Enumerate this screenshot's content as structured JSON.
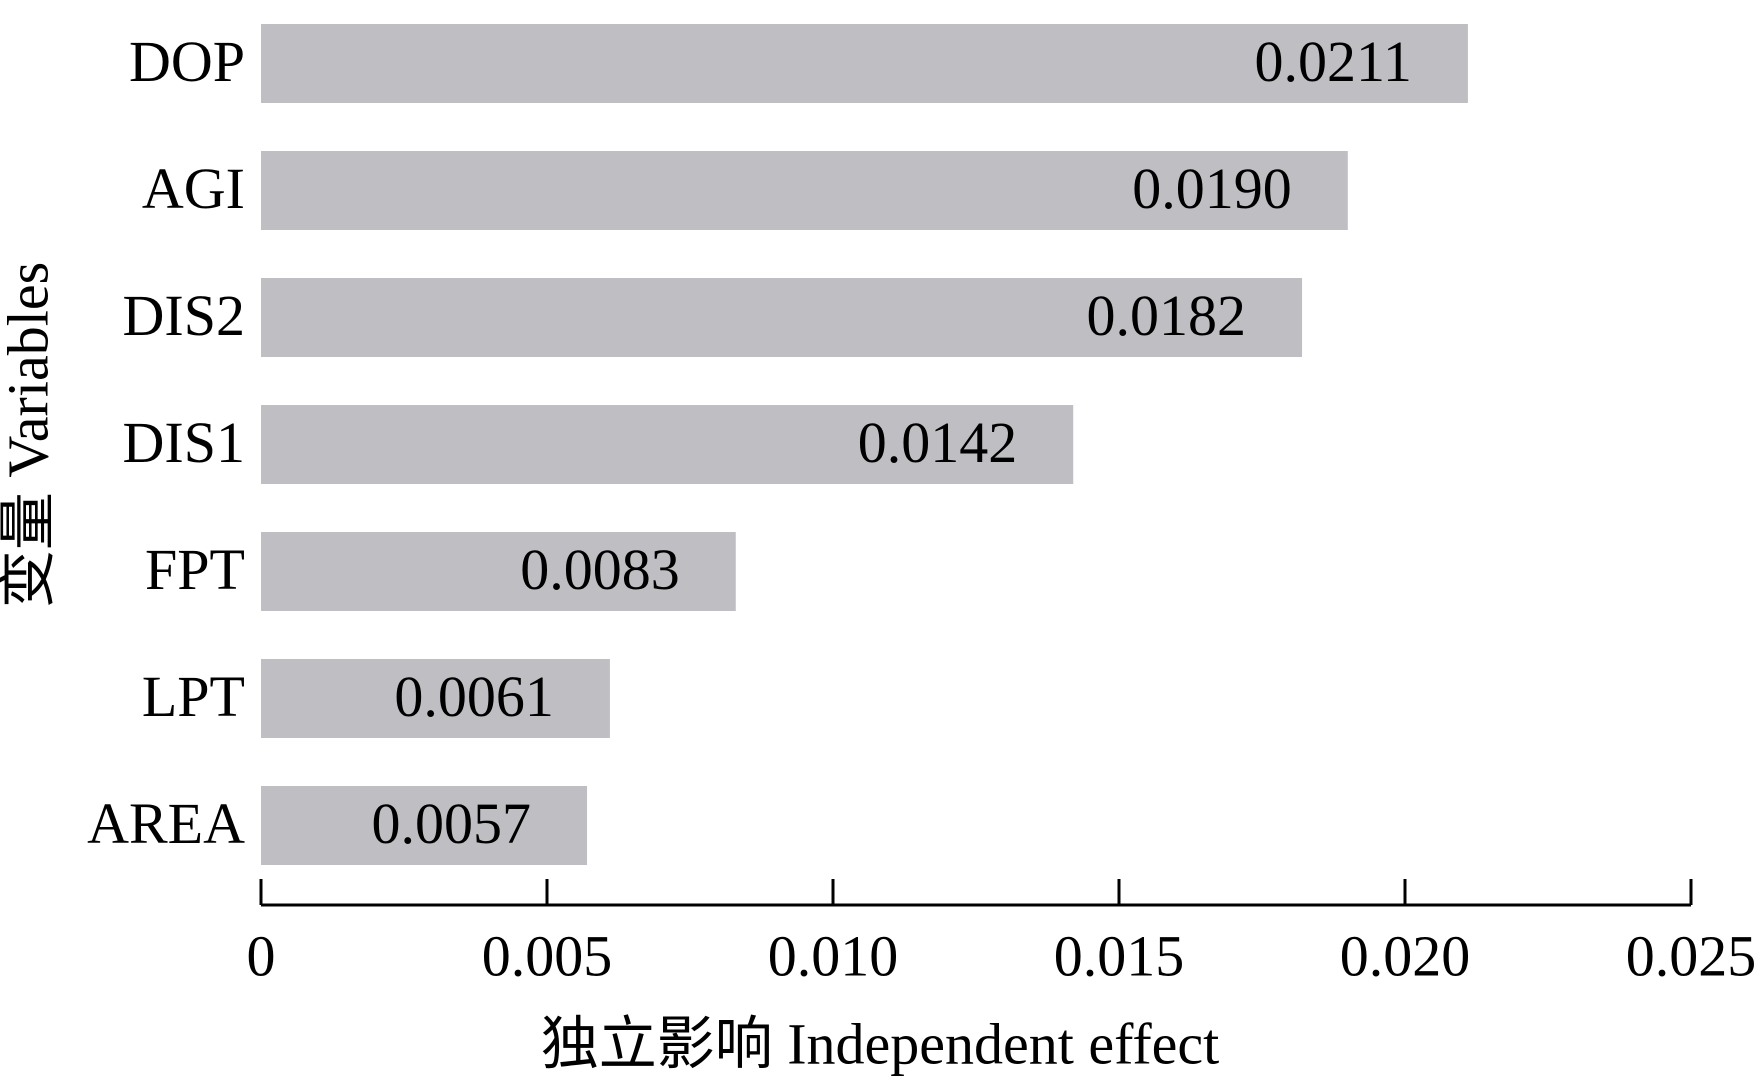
{
  "chart_data": {
    "type": "barh",
    "xlabel": "独立影响 Independent effect",
    "ylabel": "变量 Variables",
    "categories": [
      "DOP",
      "AGI",
      "DIS2",
      "DIS1",
      "FPT",
      "LPT",
      "AREA"
    ],
    "values": [
      0.0211,
      0.019,
      0.0182,
      0.0142,
      0.0083,
      0.0061,
      0.0057
    ],
    "value_labels": [
      "0.0211",
      "0.0190",
      "0.0182",
      "0.0142",
      "0.0083",
      "0.0061",
      "0.0057"
    ],
    "color": "#bfbec3",
    "xlim": [
      0,
      0.025
    ],
    "xticks": [
      0,
      0.005,
      {
        "value": 0.01,
        "label": "0.010"
      },
      0.015,
      {
        "value": 0.02,
        "label": "0.020"
      },
      0.025
    ]
  }
}
